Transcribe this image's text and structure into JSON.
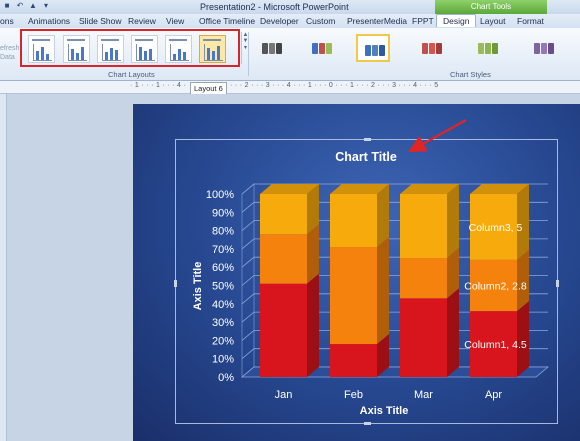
{
  "window": {
    "title": "Presentation2 - Microsoft PowerPoint",
    "context_tab_group": "Chart Tools"
  },
  "tabs": [
    "ons",
    "Animations",
    "Slide Show",
    "Review",
    "View",
    "Office Timeline",
    "Developer",
    "Custom",
    "PresenterMedia",
    "FPPT",
    "Design",
    "Layout",
    "Format"
  ],
  "active_tab": "Design",
  "ribbon": {
    "refresh_label": "efresh\nData",
    "chart_layouts_label": "Chart Layouts",
    "chart_styles_label": "Chart Styles",
    "selected_layout": 6,
    "selected_style": 3,
    "style_colors": [
      [
        "#555555",
        "#777777",
        "#444444"
      ],
      [
        "#3f6fbf",
        "#c0504d",
        "#9bbb59"
      ],
      [
        "#3f6fbf",
        "#4f81bd",
        "#2c5aa0"
      ],
      [
        "#c0504d",
        "#d9534f",
        "#a33b38"
      ],
      [
        "#9bbb59",
        "#8db54d",
        "#6f9a35"
      ],
      [
        "#8064a2",
        "#9479b6",
        "#6a4d8d"
      ]
    ]
  },
  "ruler": {
    "ticks": "· 1 · · · 1 · · · 4 ·",
    "right_ticks": "· · · 2 · · · 3 · · · 4 · · · 1 · · · 0 · · · 1 · · · 2 · · · 3 · · · 4 · · · 5"
  },
  "tooltip": "Layout 6",
  "chart_data": {
    "type": "bar",
    "stacked": "100%",
    "three_d": true,
    "title": "Chart Title",
    "xlabel": "Axis Title",
    "ylabel": "Axis Title",
    "categories": [
      "Jan",
      "Feb",
      "Mar",
      "Apr"
    ],
    "series": [
      {
        "name": "Column1",
        "values": [
          51,
          18,
          43,
          36
        ],
        "color": "#d8151c"
      },
      {
        "name": "Column2",
        "values": [
          27,
          53,
          22,
          28
        ],
        "color": "#f5820d"
      },
      {
        "name": "Column3",
        "values": [
          22,
          29,
          35,
          36
        ],
        "color": "#f7aa0c"
      }
    ],
    "yticks": [
      "0%",
      "10%",
      "20%",
      "30%",
      "40%",
      "50%",
      "60%",
      "70%",
      "80%",
      "90%",
      "100%"
    ],
    "ylim": [
      0,
      100
    ],
    "data_labels": {
      "column": 3,
      "labels": [
        "Column1, 4.5",
        "Column2, 2.8",
        "Column3, 5"
      ]
    },
    "gridlines": true
  }
}
